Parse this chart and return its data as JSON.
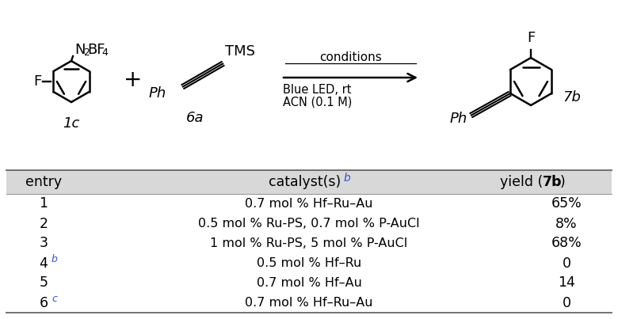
{
  "fig_width": 7.8,
  "fig_height": 4.03,
  "dpi": 100,
  "bg_color": "#ffffff",
  "table_header_bg": "#d8d8d8",
  "superscript_color": "#3355cc",
  "rows": [
    {
      "entry": "1",
      "entry_sup": "",
      "catalyst": "0.7 mol % Hf–Ru–Au",
      "yield": "65%"
    },
    {
      "entry": "2",
      "entry_sup": "",
      "catalyst": "0.5 mol % Ru-PS, 0.7 mol % P-AuCl",
      "cat_bold_P": true,
      "yield": "8%"
    },
    {
      "entry": "3",
      "entry_sup": "",
      "catalyst": "1 mol % Ru-PS, 5 mol % P-AuCl",
      "cat_bold_P": true,
      "yield": "68%"
    },
    {
      "entry": "4",
      "entry_sup": "b",
      "catalyst": "0.5 mol % Hf–Ru",
      "cat_bold_P": false,
      "yield": "0"
    },
    {
      "entry": "5",
      "entry_sup": "",
      "catalyst": "0.7 mol % Hf–Au",
      "cat_bold_P": false,
      "yield": "14"
    },
    {
      "entry": "6",
      "entry_sup": "c",
      "catalyst": "0.7 mol % Hf–Ru–Au",
      "cat_bold_P": false,
      "yield": "0"
    }
  ],
  "conditions_line1": "conditions",
  "conditions_line2": "Blue LED, rt",
  "conditions_line3": "ACN (0.1 M)"
}
